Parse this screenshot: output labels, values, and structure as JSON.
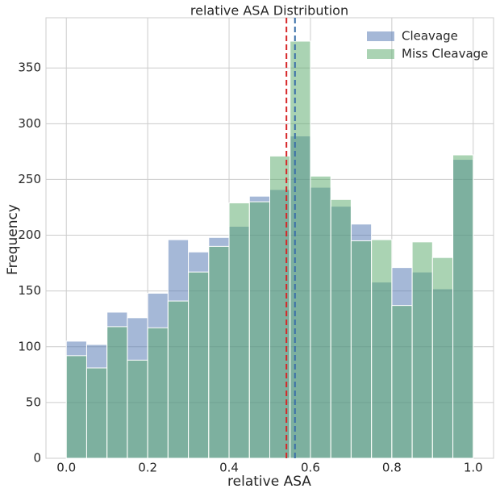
{
  "chart_data": {
    "type": "histogram",
    "title": "relative ASA Distribution",
    "x_label": "relative ASA",
    "y_label": "Frequency",
    "bins": [
      0,
      0.05,
      0.1,
      0.15,
      0.2,
      0.25,
      0.3,
      0.35,
      0.4,
      0.45,
      0.5,
      0.55,
      0.6,
      0.65,
      0.7,
      0.75,
      0.8,
      0.85,
      0.9,
      0.95,
      1.0
    ],
    "series": [
      {
        "name": "Cleavage",
        "color": "#4c72b0",
        "values": [
          105,
          102,
          131,
          126,
          148,
          196,
          185,
          198,
          208,
          235,
          241,
          289,
          243,
          226,
          210,
          158,
          171,
          167,
          152,
          268
        ]
      },
      {
        "name": "Miss Cleavage",
        "color": "#55a868",
        "values": [
          92,
          81,
          118,
          88,
          117,
          141,
          167,
          190,
          229,
          230,
          271,
          374,
          253,
          232,
          195,
          196,
          137,
          194,
          180,
          272
        ]
      }
    ],
    "vlines": [
      {
        "value": 0.541,
        "color": "#d62728"
      },
      {
        "value": 0.562,
        "color": "#3a6fa8"
      }
    ],
    "xlim": [
      -0.05,
      1.05
    ],
    "ylim": [
      0,
      395
    ],
    "xticks": [
      {
        "value": 0,
        "label": "0.0"
      },
      0.2,
      0.4,
      0.6,
      0.8,
      {
        "value": 1,
        "label": "1.0"
      }
    ],
    "yticks": [
      0,
      50,
      100,
      150,
      200,
      250,
      300,
      350
    ],
    "grid": true,
    "legend": "upper right"
  }
}
